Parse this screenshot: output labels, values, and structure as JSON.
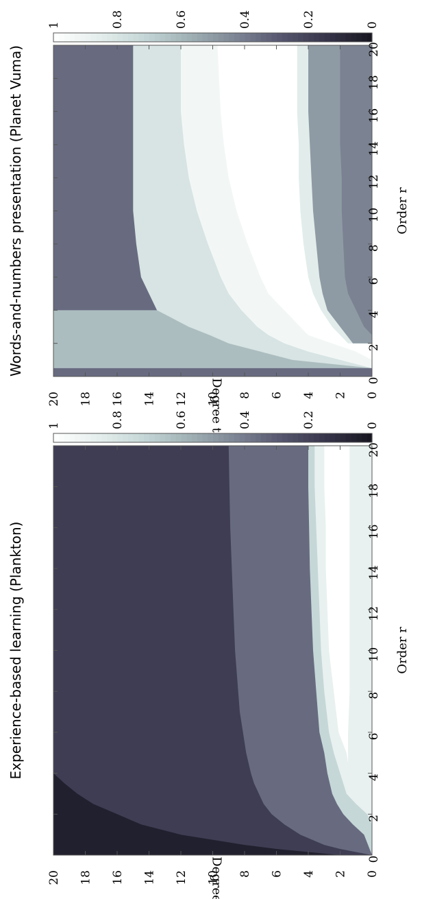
{
  "colormap": [
    "#16151f",
    "#363449",
    "#56566f",
    "#7d8594",
    "#9fb0b4",
    "#c4d6d6",
    "#e4eeec",
    "#ffffff"
  ],
  "panels": [
    {
      "title": "Experience-based learning (Plankton)",
      "chart_data": {
        "type": "heatmap",
        "title": "Experience-based learning (Plankton)",
        "xlabel": "Order r",
        "ylabel": "Degree t",
        "xlim": [
          0,
          20
        ],
        "ylim": [
          0,
          20
        ],
        "xticks": [
          "0",
          "2",
          "4",
          "6",
          "8",
          "10",
          "12",
          "14",
          "16",
          "18",
          "20"
        ],
        "yticks": [
          "0",
          "2",
          "4",
          "6",
          "8",
          "10",
          "12",
          "14",
          "16",
          "18",
          "20"
        ],
        "colorbar": {
          "range": [
            0,
            1
          ],
          "ticks": [
            "0",
            "0.2",
            "0.4",
            "0.6",
            "0.8",
            "1"
          ]
        },
        "grid": false,
        "bands": [
          {
            "name": "",
            "value": 0.05,
            "order_r": [
              0.0,
              0.3,
              0.6,
              1.0,
              1.5,
              2.0,
              2.5,
              3.0,
              3.5,
              4.0
            ],
            "degree_t": [
              20.0,
              20.0,
              20.0,
              20.0,
              20.0,
              20.0,
              20.0,
              20.0,
              20.0,
              20.0
            ]
          },
          {
            "name": "",
            "value": 0.18,
            "order_r": [
              0.0,
              0.3,
              0.5,
              1.0,
              1.5,
              2.0,
              2.5,
              3.0,
              3.5,
              4.0,
              5.0,
              6.0,
              8.0,
              10.0,
              12.0,
              14.0,
              16.0,
              18.0,
              20.0
            ],
            "degree_t": [
              2.0,
              6.0,
              8.0,
              12.0,
              14.5,
              16.0,
              17.5,
              18.5,
              19.3,
              20.0,
              20.0,
              20.0,
              20.0,
              20.0,
              20.0,
              20.0,
              20.0,
              20.0,
              20.0
            ]
          },
          {
            "name": "",
            "value": 0.35,
            "order_r": [
              0.0,
              0.3,
              0.5,
              1.0,
              1.5,
              2.0,
              2.5,
              3.0,
              3.5,
              4.0,
              5.0,
              6.0,
              7.0,
              8.0,
              10.0,
              12.0,
              14.0,
              16.0,
              18.0,
              20.0
            ],
            "degree_t": [
              0.0,
              2.0,
              3.0,
              4.5,
              5.5,
              6.3,
              6.8,
              7.1,
              7.4,
              7.6,
              7.9,
              8.1,
              8.3,
              8.4,
              8.6,
              8.7,
              8.8,
              8.9,
              8.95,
              9.0
            ]
          },
          {
            "name": "",
            "value": 0.72,
            "order_r": [
              0.0,
              1.0,
              1.5,
              2.0,
              2.5,
              3.0,
              4.0,
              5.0,
              6.0,
              8.0,
              10.0,
              12.0,
              14.0,
              16.0,
              18.0,
              20.0
            ],
            "degree_t": [
              0.0,
              0.5,
              1.2,
              1.8,
              2.2,
              2.5,
              2.8,
              3.0,
              3.3,
              3.5,
              3.7,
              3.8,
              3.9,
              3.95,
              4.0,
              4.0
            ]
          },
          {
            "name": "",
            "value": 0.88,
            "order_r": [
              0.0,
              1.5,
              2.0,
              2.5,
              3.0,
              4.0,
              5.0,
              6.0,
              8.0,
              10.0,
              12.0,
              14.0,
              16.0,
              18.0,
              20.0
            ],
            "degree_t": [
              0.0,
              0.0,
              0.3,
              1.0,
              1.6,
              2.0,
              2.4,
              2.7,
              3.0,
              3.2,
              3.3,
              3.4,
              3.5,
              3.6,
              3.6
            ]
          },
          {
            "name": "",
            "value": 1.0,
            "order_r": [
              4.5,
              5.0,
              6.0,
              8.0,
              10.0,
              12.0,
              14.0,
              16.0,
              18.0,
              20.0
            ],
            "degree_t": [
              1.5,
              1.6,
              2.1,
              2.4,
              2.7,
              2.8,
              2.9,
              2.9,
              3.0,
              3.0
            ],
            "lower_degree_t": [
              1.5,
              1.5,
              1.5,
              1.4,
              1.4,
              1.4,
              1.4,
              1.4,
              1.4,
              1.4
            ]
          }
        ]
      }
    },
    {
      "title": "Words-and-numbers presentation (Planet Vuma)",
      "chart_data": {
        "type": "heatmap",
        "title": "Words-and-numbers presentation (Planet Vuma)",
        "xlabel": "Order r",
        "ylabel": "Degree t",
        "xlim": [
          0,
          20
        ],
        "ylim": [
          0,
          20
        ],
        "xticks": [
          "0",
          "2",
          "4",
          "6",
          "8",
          "10",
          "12",
          "14",
          "16",
          "18",
          "20"
        ],
        "yticks": [
          "0",
          "2",
          "4",
          "6",
          "8",
          "10",
          "12",
          "14",
          "16",
          "18",
          "20"
        ],
        "colorbar": {
          "range": [
            0,
            1
          ],
          "ticks": [
            "0",
            "0.2",
            "0.4",
            "0.6",
            "0.8",
            "1"
          ]
        },
        "grid": false,
        "bands": [
          {
            "name": "",
            "value": 0.35,
            "order_r": [
              0.0,
              0.25,
              0.5
            ],
            "degree_t": [
              20.0,
              20.0,
              20.0
            ]
          },
          {
            "name": "",
            "value": 0.62,
            "order_r": [
              0.5,
              1.0,
              1.5,
              2.0,
              2.5,
              3.0,
              3.5,
              4.0
            ],
            "degree_t": [
              20.0,
              20.0,
              20.0,
              20.0,
              20.0,
              20.0,
              20.0,
              20.0
            ]
          },
          {
            "name": "",
            "value": 0.8,
            "order_r": [
              0.5,
              1.0,
              1.5,
              2.0,
              2.5,
              3.0,
              3.5,
              4.0,
              5.0,
              6.0,
              8.0,
              10.0,
              12.0,
              14.0,
              16.0,
              18.0,
              20.0
            ],
            "degree_t": [
              0.0,
              5.0,
              7.0,
              9.0,
              10.2,
              11.5,
              12.5,
              13.5,
              14.0,
              14.5,
              14.8,
              15.0,
              15.0,
              15.0,
              15.0,
              15.0,
              15.0
            ]
          },
          {
            "name": "",
            "value": 0.93,
            "order_r": [
              0.5,
              1.0,
              1.5,
              2.0,
              2.5,
              3.0,
              4.0,
              5.0,
              6.0,
              8.0,
              10.0,
              12.0,
              14.0,
              16.0,
              18.0,
              20.0
            ],
            "degree_t": [
              0.0,
              2.0,
              4.0,
              5.5,
              6.5,
              7.2,
              8.2,
              9.0,
              9.5,
              10.3,
              11.0,
              11.5,
              11.8,
              12.0,
              12.0,
              12.0
            ]
          },
          {
            "name": "",
            "value": 1.0,
            "order_r": [
              1.0,
              1.5,
              2.0,
              2.5,
              3.0,
              4.0,
              5.0,
              6.0,
              8.0,
              10.0,
              12.0,
              14.0,
              16.0,
              18.0,
              20.0
            ],
            "degree_t": [
              0.0,
              1.0,
              2.5,
              4.0,
              4.5,
              5.5,
              6.5,
              7.0,
              7.8,
              8.5,
              9.0,
              9.3,
              9.5,
              9.6,
              9.7
            ]
          },
          {
            "name": "",
            "value": 0.85,
            "order_r": [
              2.0,
              3.0,
              4.0,
              5.0,
              6.0,
              8.0,
              10.0,
              12.0,
              14.0,
              16.0,
              18.0,
              20.0
            ],
            "degree_t": [
              1.5,
              2.5,
              3.2,
              3.7,
              4.0,
              4.3,
              4.5,
              4.6,
              4.6,
              4.7,
              4.7,
              4.7
            ]
          },
          {
            "name": "",
            "value": 0.5,
            "order_r": [
              2.0,
              3.0,
              4.0,
              5.0,
              6.0,
              8.0,
              10.0,
              12.0,
              14.0,
              16.0,
              18.0,
              20.0
            ],
            "degree_t": [
              1.2,
              2.0,
              2.8,
              3.1,
              3.3,
              3.5,
              3.7,
              3.8,
              3.9,
              4.0,
              4.0,
              4.0
            ]
          },
          {
            "name": "",
            "value": 0.42,
            "order_r": [
              2.5,
              3.0,
              4.0,
              5.0,
              6.0,
              8.0,
              10.0,
              12.0,
              14.0,
              16.0,
              18.0,
              20.0
            ],
            "degree_t": [
              0.0,
              0.5,
              1.0,
              1.5,
              1.7,
              1.8,
              1.9,
              1.9,
              2.0,
              2.0,
              2.0,
              2.0
            ]
          },
          {
            "name": "",
            "value": 0.35,
            "order_r": [
              0.0,
              0.25
            ],
            "degree_t": [
              20.0,
              20.0
            ]
          }
        ]
      }
    }
  ]
}
